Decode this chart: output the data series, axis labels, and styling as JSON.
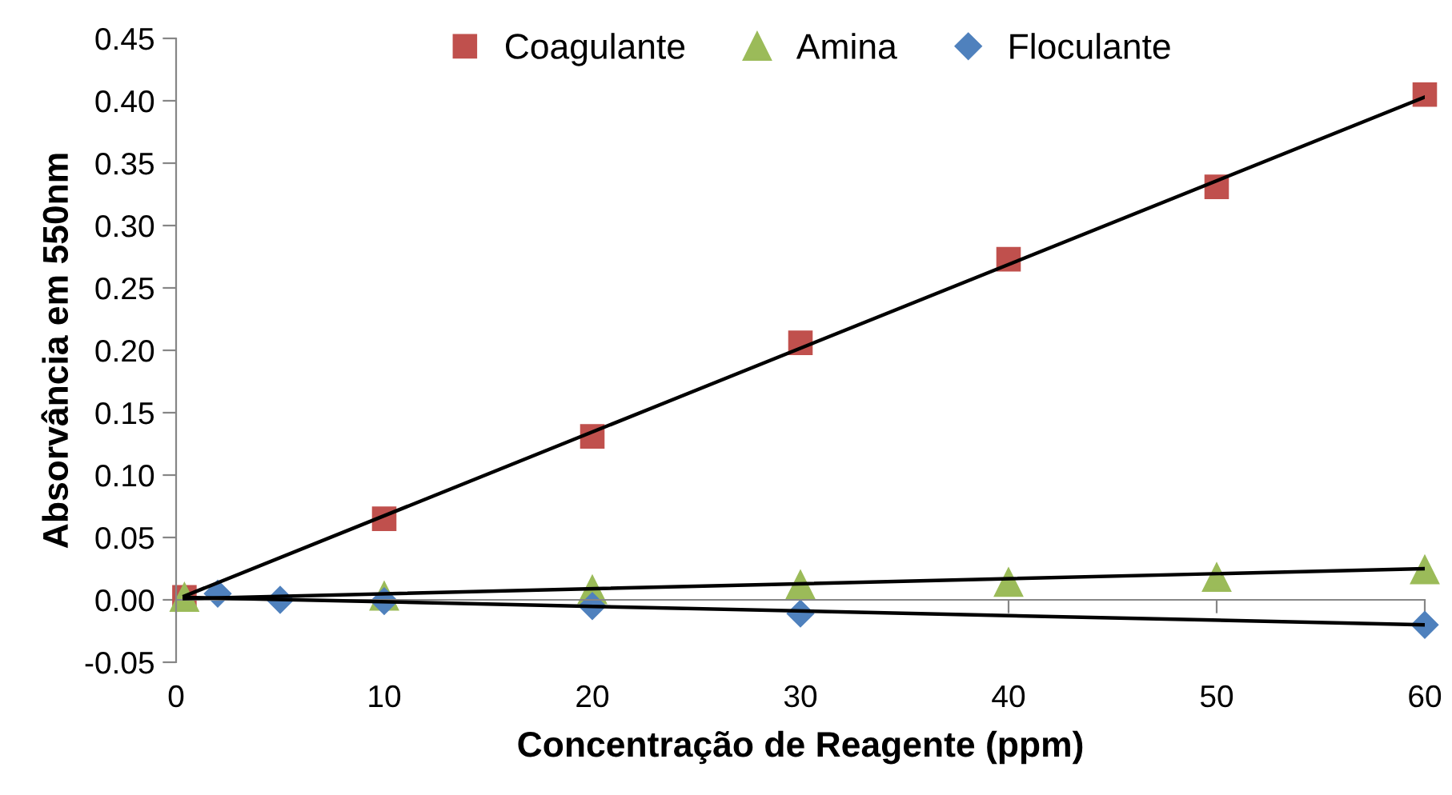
{
  "chart_data": {
    "type": "scatter",
    "xlabel": "Concentração de Reagente (ppm)",
    "ylabel": "Absorvância em 550nm",
    "series": [
      {
        "name": "Coagulante",
        "color": "#c0504d",
        "marker": "square",
        "x": [
          0.4,
          10,
          20,
          30,
          40,
          50,
          60
        ],
        "values": [
          0.002,
          0.065,
          0.131,
          0.206,
          0.273,
          0.331,
          0.405
        ]
      },
      {
        "name": "Amina",
        "color": "#9bbb59",
        "marker": "triangle",
        "x": [
          0.4,
          10,
          20,
          30,
          40,
          50,
          60
        ],
        "values": [
          0.002,
          0.003,
          0.008,
          0.012,
          0.014,
          0.018,
          0.024
        ]
      },
      {
        "name": "Floculante",
        "color": "#4f81bd",
        "marker": "diamond",
        "x": [
          2,
          5,
          10,
          20,
          30,
          60
        ],
        "values": [
          0.005,
          0.0,
          -0.001,
          -0.005,
          -0.011,
          -0.02
        ]
      },
      {
        "type": "line",
        "color": "#000000",
        "marker": "none",
        "x": [
          0.4,
          60
        ],
        "values": [
          0.003,
          0.403
        ]
      },
      {
        "type": "line",
        "color": "#000000",
        "marker": "none",
        "x": [
          0.4,
          60
        ],
        "values": [
          0.001,
          0.025
        ]
      },
      {
        "type": "line",
        "color": "#000000",
        "marker": "none",
        "x": [
          0.4,
          60
        ],
        "values": [
          0.002,
          -0.02
        ]
      }
    ],
    "xlim": [
      0,
      60
    ],
    "xticks": [
      0,
      10,
      20,
      30,
      40,
      50,
      60
    ],
    "ylim": [
      -0.05,
      0.45
    ],
    "yticks": [
      {
        "value": -0.05,
        "label": "-0.05"
      },
      {
        "value": 0,
        "label": "0.00"
      },
      {
        "value": 0.05,
        "label": "0.05"
      },
      {
        "value": 0.1,
        "label": "0.10"
      },
      {
        "value": 0.15,
        "label": "0.15"
      },
      {
        "value": 0.2,
        "label": "0.20"
      },
      {
        "value": 0.25,
        "label": "0.25"
      },
      {
        "value": 0.3,
        "label": "0.30"
      },
      {
        "value": 0.35,
        "label": "0.35"
      },
      {
        "value": 0.4,
        "label": "0.40"
      },
      {
        "value": 0.45,
        "label": "0.45"
      }
    ],
    "legend": "top"
  }
}
